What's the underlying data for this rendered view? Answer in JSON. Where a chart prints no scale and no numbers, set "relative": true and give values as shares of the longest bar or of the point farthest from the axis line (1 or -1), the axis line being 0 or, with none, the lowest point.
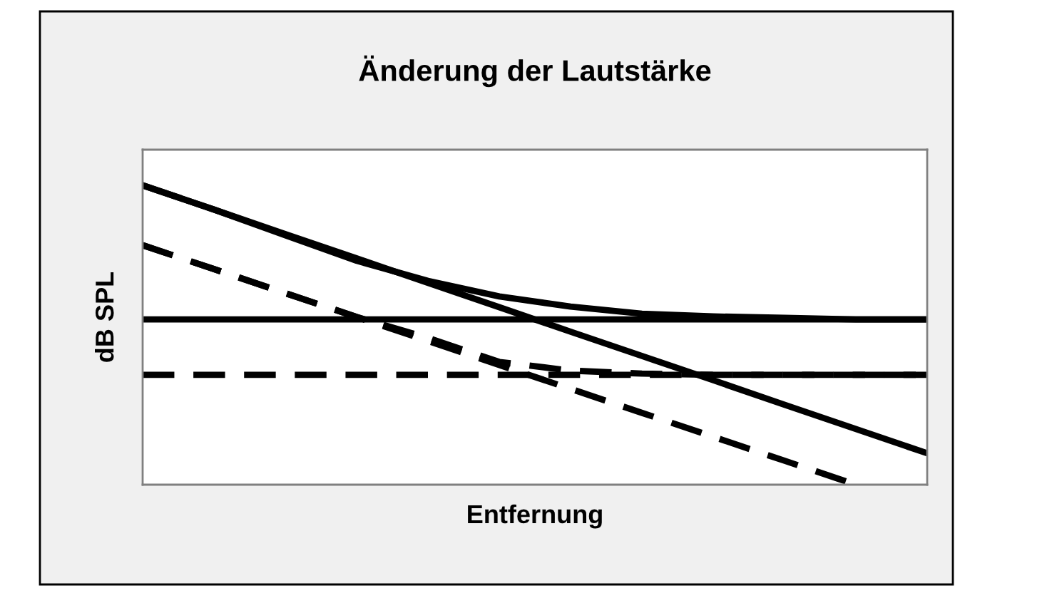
{
  "chart_data": {
    "type": "line",
    "title": "Änderung der Lautstärke",
    "xlabel": "Entfernung",
    "ylabel": "dB SPL",
    "relative": true,
    "marker": "none",
    "categories": [
      null,
      null,
      null,
      null,
      null,
      null,
      null,
      null,
      null,
      null,
      null,
      null
    ],
    "series": [
      {
        "color": "#000000",
        "line_style": "solid",
        "values": [
          0.552,
          0.552,
          0.552,
          0.552,
          0.552,
          0.552,
          0.552,
          0.552,
          0.552,
          0.552,
          0.552,
          0.552
        ]
      },
      {
        "color": "#000000",
        "line_style": "dashed",
        "values": [
          0.367,
          0.367,
          0.367,
          0.367,
          0.367,
          0.367,
          0.367,
          0.367,
          0.367,
          0.367,
          0.367,
          0.367
        ]
      },
      {
        "color": "#000000",
        "line_style": "solid",
        "values": [
          1.0,
          0.919,
          0.833,
          0.748,
          0.681,
          0.629,
          0.595,
          0.571,
          0.562,
          0.557,
          0.552,
          0.552
        ]
      },
      {
        "color": "#000000",
        "line_style": "solid",
        "values": [
          1.0,
          0.919,
          0.837,
          0.756,
          0.674,
          0.593,
          0.511,
          0.43,
          0.349,
          0.267,
          0.186,
          0.105
        ]
      },
      {
        "color": "#000000",
        "line_style": "dashed",
        "values": [
          0.8,
          0.72,
          0.64,
          0.56,
          0.49,
          0.41,
          0.381,
          0.371,
          0.367,
          0.367,
          0.367,
          0.367
        ]
      },
      {
        "color": "#000000",
        "line_style": "dashed",
        "values": [
          0.8,
          0.72,
          0.64,
          0.56,
          0.48,
          0.4,
          0.32,
          0.24,
          0.16,
          0.08,
          0.0,
          null
        ]
      }
    ]
  }
}
